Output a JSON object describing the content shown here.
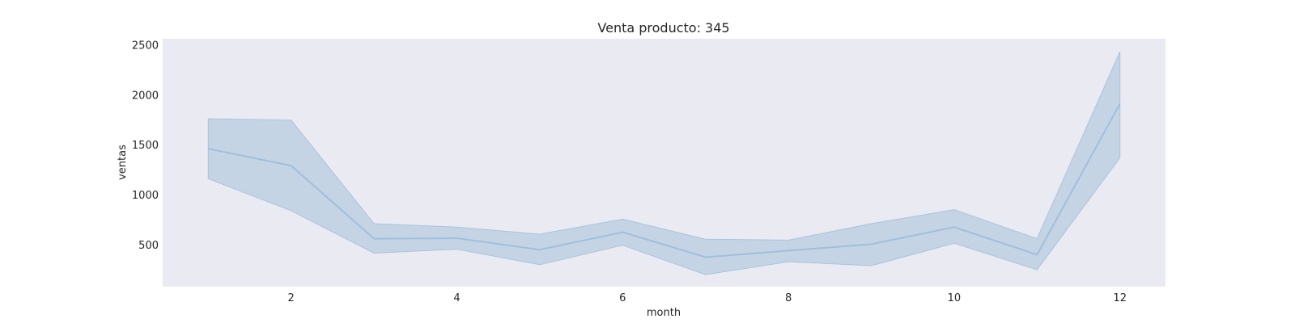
{
  "chart_data": {
    "type": "line",
    "title": "Venta producto: 345",
    "xlabel": "month",
    "ylabel": "ventas",
    "xlim": [
      0.45,
      12.55
    ],
    "ylim": [
      80,
      2560
    ],
    "xticks": [
      2,
      4,
      6,
      8,
      10,
      12
    ],
    "yticks": [
      500,
      1000,
      1500,
      2000,
      2500
    ],
    "grid": false,
    "colors": {
      "plot_bg": "#eaeaf2",
      "line": "#9fbfdc",
      "band": "#c5d4e5",
      "band_edge": "#a9c3dd"
    },
    "series": [
      {
        "x": [
          1,
          2,
          3,
          4,
          5,
          6,
          7,
          8,
          9,
          10,
          11,
          12
        ],
        "y": [
          1460,
          1290,
          560,
          565,
          450,
          625,
          375,
          440,
          505,
          675,
          400,
          1910
        ],
        "ci_lower": [
          1160,
          840,
          415,
          455,
          300,
          495,
          200,
          330,
          290,
          515,
          250,
          1370
        ],
        "ci_upper": [
          1760,
          1745,
          710,
          675,
          605,
          755,
          555,
          545,
          710,
          850,
          560,
          2430
        ]
      }
    ]
  }
}
